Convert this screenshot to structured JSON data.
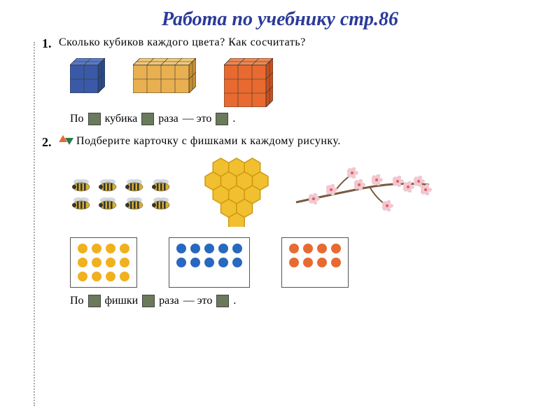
{
  "title": "Работа по учебнику стр.86",
  "title_color": "#2a3a9a",
  "ex1": {
    "num": "1.",
    "question": "Сколько кубиков каждого цвета? Как сосчитать?",
    "cubes": [
      {
        "color_face": "#3a5aa8",
        "color_top": "#5a7ac8",
        "color_side": "#2a4a88",
        "cols": 2,
        "rows": 2,
        "depth": 2
      },
      {
        "color_face": "#e8b050",
        "color_top": "#f0c878",
        "color_side": "#c89030",
        "cols": 4,
        "rows": 2,
        "depth": 2
      },
      {
        "color_face": "#e86a30",
        "color_top": "#f08850",
        "color_side": "#c85020",
        "cols": 3,
        "rows": 3,
        "depth": 2
      }
    ],
    "fill": {
      "w1": "По",
      "w2": "кубика",
      "w3": "раза",
      "w4": "— это",
      "dot": "."
    }
  },
  "ex2": {
    "num": "2.",
    "question": "Подберите карточку с фишками к каждому рисунку.",
    "bees": {
      "rows": 2,
      "cols": 4,
      "body_color": "#d8b030",
      "stripe_color": "#333",
      "wing_color": "#c8d0d8"
    },
    "honeycomb": {
      "cells": 13,
      "color": "#f0c030",
      "border": "#d09810"
    },
    "branch": {
      "flower_color": "#f0c8d0",
      "center_color": "#e85a60",
      "branch_color": "#7a5a40",
      "flowers": 10
    },
    "cards": [
      {
        "rows": 3,
        "cols": 4,
        "color": "#f0b020"
      },
      {
        "rows": 2,
        "cols": 5,
        "color": "#2868c0"
      },
      {
        "rows": 2,
        "cols": 4,
        "color": "#e86a30"
      }
    ],
    "fill": {
      "w1": "По",
      "w2": "фишки",
      "w3": "раза",
      "w4": "— это",
      "dot": "."
    }
  },
  "fillbox_color": "#6a7a5a"
}
